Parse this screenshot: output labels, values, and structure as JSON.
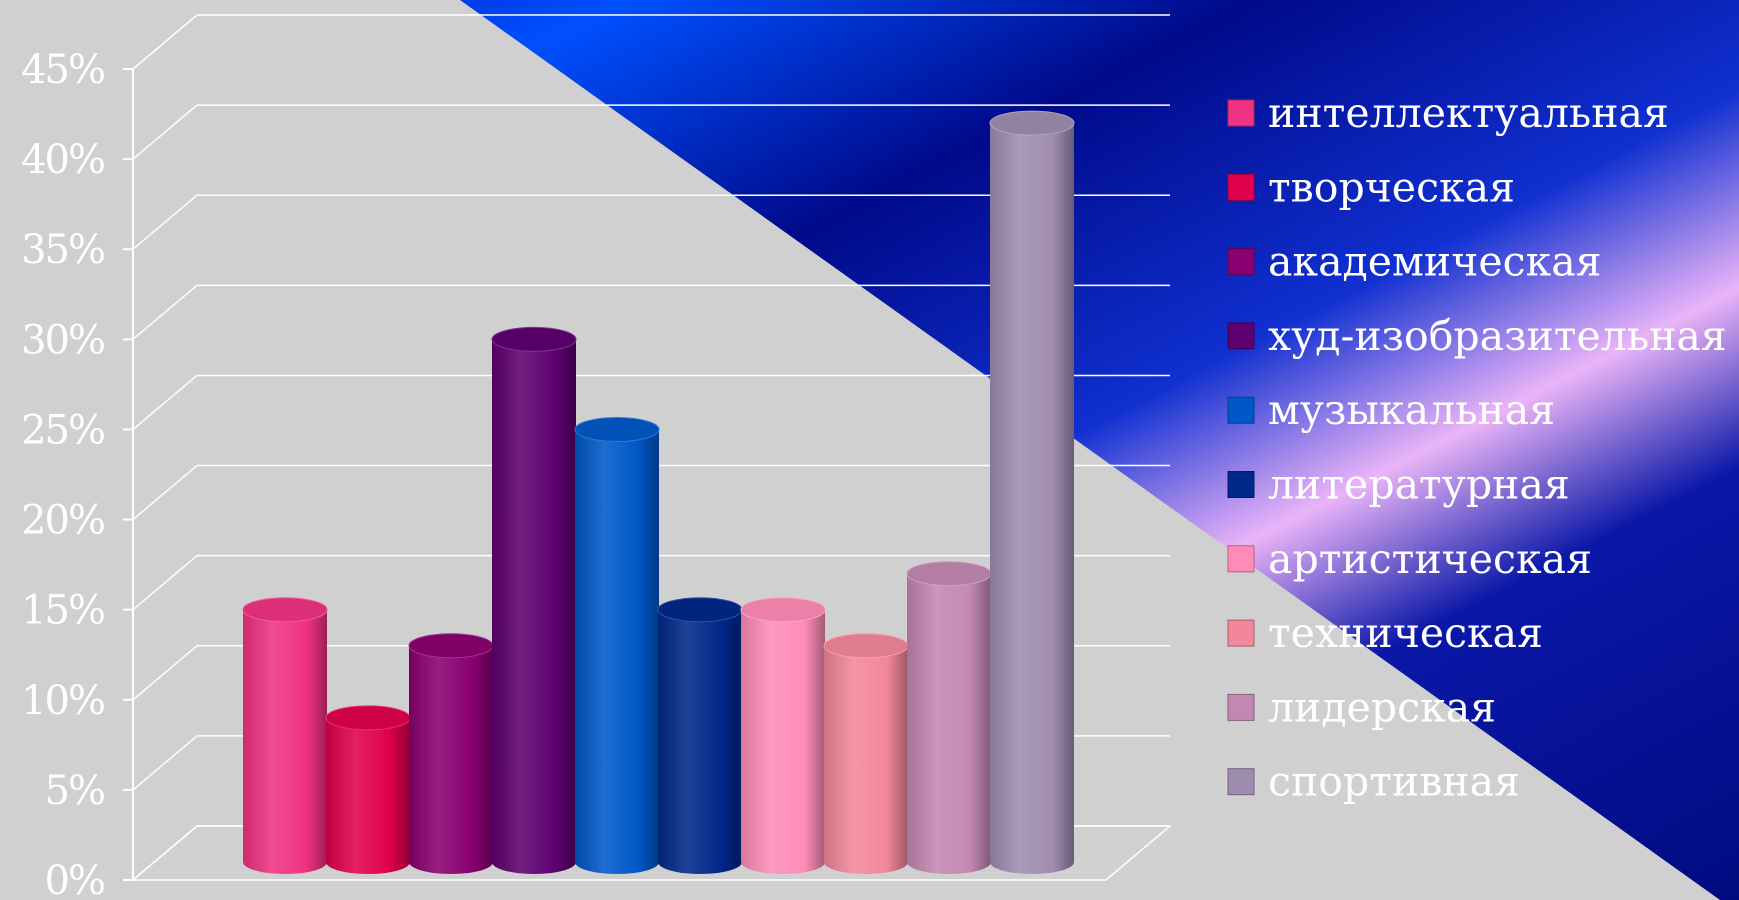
{
  "colors": {
    "panel_gray": "#d0d0d0",
    "blue_bright": "#0047ff",
    "blue_dark": "#000c8c",
    "pink_stripe": "#e8b0f6",
    "grid": "#ffffff"
  },
  "chart_data": {
    "type": "bar",
    "style": "3d-cylinder",
    "title": "",
    "xlabel": "",
    "ylabel": "",
    "ylim": [
      0,
      0.45
    ],
    "y_ticks": [
      {
        "value": 0,
        "label": "0%"
      },
      {
        "value": 0.05,
        "label": "5%"
      },
      {
        "value": 0.1,
        "label": "10%"
      },
      {
        "value": 0.15,
        "label": "15%"
      },
      {
        "value": 0.2,
        "label": "20%"
      },
      {
        "value": 0.25,
        "label": "25%"
      },
      {
        "value": 0.3,
        "label": "30%"
      },
      {
        "value": 0.35,
        "label": "35%"
      },
      {
        "value": 0.4,
        "label": "40%"
      },
      {
        "value": 0.45,
        "label": "45%"
      }
    ],
    "grid": true,
    "legend_position": "right",
    "series": [
      {
        "name": "интеллектуальная",
        "value": 0.14,
        "color": "#f03282"
      },
      {
        "name": "творческая",
        "value": 0.08,
        "color": "#e0004e"
      },
      {
        "name": "академическая",
        "value": 0.12,
        "color": "#8a0070"
      },
      {
        "name": "худ-изобразительная",
        "value": 0.29,
        "color": "#5e0070"
      },
      {
        "name": "музыкальная",
        "value": 0.24,
        "color": "#0058c8"
      },
      {
        "name": "литературная",
        "value": 0.14,
        "color": "#00288a"
      },
      {
        "name": "артистическая",
        "value": 0.14,
        "color": "#ff8cb8"
      },
      {
        "name": "техническая",
        "value": 0.12,
        "color": "#f2879a"
      },
      {
        "name": "лидерская",
        "value": 0.16,
        "color": "#c388b2"
      },
      {
        "name": "спортивная",
        "value": 0.41,
        "color": "#a08cb0"
      }
    ]
  }
}
